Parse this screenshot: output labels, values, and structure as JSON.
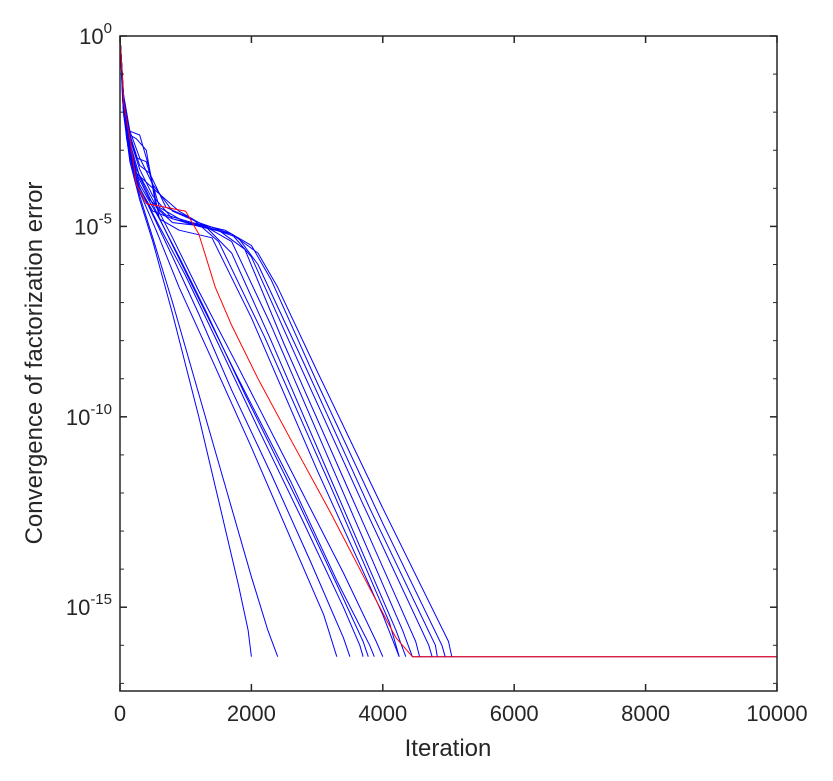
{
  "chart_data": {
    "type": "line",
    "title": "",
    "xlabel": "Iteration",
    "ylabel": "Convergence of factorization error",
    "xlim": [
      0,
      10000
    ],
    "ylim_log10": [
      -17.2,
      0
    ],
    "y_scale": "log",
    "grid": false,
    "legend": "none",
    "x_ticks": [
      {
        "value": 0,
        "label": "0"
      },
      {
        "value": 2000,
        "label": "2000"
      },
      {
        "value": 4000,
        "label": "4000"
      },
      {
        "value": 6000,
        "label": "6000"
      },
      {
        "value": 8000,
        "label": "8000"
      },
      {
        "value": 10000,
        "label": "10000"
      }
    ],
    "y_ticks": [
      {
        "log10": 0,
        "base": "10",
        "exp": "0"
      },
      {
        "log10": -5,
        "base": "10",
        "exp": "-5"
      },
      {
        "log10": -10,
        "base": "10",
        "exp": "-10"
      },
      {
        "log10": -15,
        "base": "10",
        "exp": "-15"
      }
    ],
    "colors": {
      "blue": "#0000ff",
      "red": "#ff0000",
      "axis": "#262626"
    },
    "series": [
      {
        "color": "#0000ff",
        "x_log10y": [
          [
            0,
            0
          ],
          [
            50,
            -1.6
          ],
          [
            100,
            -2.4
          ],
          [
            200,
            -3.5
          ],
          [
            300,
            -4.0
          ],
          [
            500,
            -4.6
          ],
          [
            800,
            -4.8
          ],
          [
            1200,
            -5.0
          ],
          [
            1700,
            -5.2
          ],
          [
            2100,
            -5.7
          ],
          [
            2400,
            -6.6
          ],
          [
            3000,
            -8.8
          ],
          [
            4000,
            -12.4
          ],
          [
            5000,
            -15.9
          ],
          [
            5050,
            -16.3
          ]
        ]
      },
      {
        "color": "#0000ff",
        "x_log10y": [
          [
            0,
            0
          ],
          [
            60,
            -1.8
          ],
          [
            120,
            -2.6
          ],
          [
            250,
            -3.6
          ],
          [
            450,
            -4.3
          ],
          [
            700,
            -4.7
          ],
          [
            1100,
            -4.9
          ],
          [
            1600,
            -5.1
          ],
          [
            2000,
            -5.5
          ],
          [
            2300,
            -6.4
          ],
          [
            3000,
            -9.1
          ],
          [
            4000,
            -12.8
          ],
          [
            4900,
            -16.0
          ],
          [
            4950,
            -16.3
          ]
        ]
      },
      {
        "color": "#0000ff",
        "x_log10y": [
          [
            0,
            0
          ],
          [
            70,
            -2.0
          ],
          [
            150,
            -2.6
          ],
          [
            250,
            -2.7
          ],
          [
            400,
            -3.0
          ],
          [
            550,
            -4.5
          ],
          [
            800,
            -4.9
          ],
          [
            1300,
            -5.0
          ],
          [
            1800,
            -5.3
          ],
          [
            2100,
            -6.0
          ],
          [
            2800,
            -8.6
          ],
          [
            3800,
            -12.4
          ],
          [
            4800,
            -16.0
          ],
          [
            4830,
            -16.3
          ]
        ]
      },
      {
        "color": "#0000ff",
        "x_log10y": [
          [
            0,
            0
          ],
          [
            50,
            -1.5
          ],
          [
            150,
            -2.5
          ],
          [
            300,
            -3.2
          ],
          [
            500,
            -3.9
          ],
          [
            800,
            -4.6
          ],
          [
            1200,
            -4.9
          ],
          [
            1700,
            -5.2
          ],
          [
            2000,
            -5.8
          ],
          [
            2700,
            -8.5
          ],
          [
            3700,
            -12.3
          ],
          [
            4700,
            -16.0
          ],
          [
            4750,
            -16.3
          ]
        ]
      },
      {
        "color": "#0000ff",
        "x_log10y": [
          [
            0,
            0
          ],
          [
            60,
            -1.7
          ],
          [
            120,
            -2.4
          ],
          [
            250,
            -3.2
          ],
          [
            400,
            -3.3
          ],
          [
            600,
            -4.5
          ],
          [
            1000,
            -4.9
          ],
          [
            1500,
            -5.1
          ],
          [
            1900,
            -5.6
          ],
          [
            2500,
            -8.1
          ],
          [
            3500,
            -12.0
          ],
          [
            4500,
            -15.9
          ],
          [
            4560,
            -16.3
          ]
        ]
      },
      {
        "color": "#0000ff",
        "x_log10y": [
          [
            0,
            0
          ],
          [
            50,
            -1.9
          ],
          [
            150,
            -2.7
          ],
          [
            300,
            -3.5
          ],
          [
            500,
            -4.2
          ],
          [
            800,
            -4.8
          ],
          [
            1300,
            -5.0
          ],
          [
            1700,
            -5.4
          ],
          [
            2300,
            -7.6
          ],
          [
            3300,
            -11.6
          ],
          [
            4300,
            -15.6
          ],
          [
            4450,
            -16.3
          ]
        ]
      },
      {
        "color": "#0000ff",
        "x_log10y": [
          [
            0,
            0
          ],
          [
            40,
            -1.5
          ],
          [
            100,
            -2.7
          ],
          [
            250,
            -3.6
          ],
          [
            500,
            -4.0
          ],
          [
            900,
            -4.6
          ],
          [
            1300,
            -5.0
          ],
          [
            1700,
            -5.7
          ],
          [
            2300,
            -8.0
          ],
          [
            3300,
            -12.0
          ],
          [
            4200,
            -15.6
          ],
          [
            4350,
            -16.3
          ]
        ]
      },
      {
        "color": "#0000ff",
        "x_log10y": [
          [
            0,
            0
          ],
          [
            50,
            -1.6
          ],
          [
            150,
            -2.6
          ],
          [
            300,
            -3.4
          ],
          [
            450,
            -3.6
          ],
          [
            700,
            -4.5
          ],
          [
            1100,
            -4.8
          ],
          [
            1500,
            -5.4
          ],
          [
            2200,
            -7.9
          ],
          [
            3200,
            -11.8
          ],
          [
            4100,
            -15.4
          ],
          [
            4250,
            -16.3
          ]
        ]
      },
      {
        "color": "#0000ff",
        "x_log10y": [
          [
            0,
            0
          ],
          [
            60,
            -1.8
          ],
          [
            150,
            -2.5
          ],
          [
            300,
            -2.6
          ],
          [
            450,
            -3.5
          ],
          [
            600,
            -4.8
          ],
          [
            900,
            -5.1
          ],
          [
            1400,
            -5.3
          ],
          [
            2000,
            -7.4
          ],
          [
            3000,
            -11.4
          ],
          [
            4000,
            -15.2
          ],
          [
            4250,
            -16.3
          ]
        ]
      },
      {
        "color": "#0000ff",
        "x_log10y": [
          [
            0,
            0
          ],
          [
            50,
            -1.6
          ],
          [
            120,
            -2.7
          ],
          [
            250,
            -3.5
          ],
          [
            500,
            -4.3
          ],
          [
            800,
            -5.3
          ],
          [
            1200,
            -6.7
          ],
          [
            1800,
            -8.7
          ],
          [
            2600,
            -11.4
          ],
          [
            3400,
            -14.1
          ],
          [
            3900,
            -15.9
          ],
          [
            4000,
            -16.3
          ]
        ]
      },
      {
        "color": "#0000ff",
        "x_log10y": [
          [
            0,
            0
          ],
          [
            50,
            -1.7
          ],
          [
            150,
            -2.8
          ],
          [
            300,
            -3.7
          ],
          [
            550,
            -4.6
          ],
          [
            800,
            -5.5
          ],
          [
            1200,
            -6.9
          ],
          [
            1800,
            -9.0
          ],
          [
            2600,
            -11.7
          ],
          [
            3300,
            -14.3
          ],
          [
            3800,
            -16.0
          ],
          [
            3870,
            -16.3
          ]
        ]
      },
      {
        "color": "#0000ff",
        "x_log10y": [
          [
            0,
            0
          ],
          [
            60,
            -1.9
          ],
          [
            150,
            -3.0
          ],
          [
            300,
            -3.9
          ],
          [
            600,
            -4.8
          ],
          [
            900,
            -5.8
          ],
          [
            1300,
            -7.2
          ],
          [
            1900,
            -9.4
          ],
          [
            2700,
            -12.2
          ],
          [
            3300,
            -14.4
          ],
          [
            3700,
            -15.9
          ],
          [
            3780,
            -16.3
          ]
        ]
      },
      {
        "color": "#0000ff",
        "x_log10y": [
          [
            0,
            0
          ],
          [
            50,
            -1.8
          ],
          [
            150,
            -3.1
          ],
          [
            300,
            -4.0
          ],
          [
            600,
            -5.0
          ],
          [
            1000,
            -6.3
          ],
          [
            1500,
            -8.1
          ],
          [
            2100,
            -10.3
          ],
          [
            2800,
            -12.8
          ],
          [
            3400,
            -15.0
          ],
          [
            3650,
            -16.0
          ],
          [
            3700,
            -16.3
          ]
        ]
      },
      {
        "color": "#0000ff",
        "x_log10y": [
          [
            0,
            0
          ],
          [
            40,
            -1.7
          ],
          [
            120,
            -2.9
          ],
          [
            250,
            -3.8
          ],
          [
            500,
            -4.7
          ],
          [
            800,
            -5.8
          ],
          [
            1200,
            -7.3
          ],
          [
            1700,
            -9.3
          ],
          [
            2300,
            -11.5
          ],
          [
            2900,
            -13.8
          ],
          [
            3400,
            -15.8
          ],
          [
            3500,
            -16.3
          ]
        ]
      },
      {
        "color": "#0000ff",
        "x_log10y": [
          [
            0,
            0
          ],
          [
            50,
            -1.9
          ],
          [
            150,
            -3.1
          ],
          [
            300,
            -4.1
          ],
          [
            550,
            -5.1
          ],
          [
            900,
            -6.6
          ],
          [
            1400,
            -8.5
          ],
          [
            2000,
            -10.8
          ],
          [
            2600,
            -13.2
          ],
          [
            3100,
            -15.2
          ],
          [
            3300,
            -16.3
          ]
        ]
      },
      {
        "color": "#0000ff",
        "x_log10y": [
          [
            0,
            0
          ],
          [
            60,
            -2.0
          ],
          [
            150,
            -3.2
          ],
          [
            300,
            -4.2
          ],
          [
            500,
            -5.3
          ],
          [
            800,
            -7.0
          ],
          [
            1200,
            -9.4
          ],
          [
            1600,
            -11.8
          ],
          [
            2000,
            -14.2
          ],
          [
            2250,
            -15.6
          ],
          [
            2400,
            -16.3
          ]
        ]
      },
      {
        "color": "#0000ff",
        "x_log10y": [
          [
            0,
            0
          ],
          [
            50,
            -2.0
          ],
          [
            150,
            -3.3
          ],
          [
            300,
            -4.3
          ],
          [
            500,
            -5.4
          ],
          [
            800,
            -7.3
          ],
          [
            1200,
            -10.0
          ],
          [
            1500,
            -12.2
          ],
          [
            1800,
            -14.4
          ],
          [
            1950,
            -15.6
          ],
          [
            2000,
            -16.3
          ]
        ]
      },
      {
        "color": "#0000ff",
        "x_log10y": [
          [
            4450,
            -16.3
          ],
          [
            10000,
            -16.3
          ]
        ]
      },
      {
        "color": "#ff0000",
        "x_log10y": [
          [
            0,
            0
          ],
          [
            60,
            -1.8
          ],
          [
            150,
            -2.7
          ],
          [
            250,
            -3.9
          ],
          [
            400,
            -4.4
          ],
          [
            700,
            -4.5
          ],
          [
            1000,
            -4.6
          ],
          [
            1200,
            -5.2
          ],
          [
            1450,
            -6.6
          ],
          [
            1700,
            -7.6
          ],
          [
            2100,
            -9.0
          ],
          [
            2600,
            -10.6
          ],
          [
            3200,
            -12.5
          ],
          [
            3800,
            -14.5
          ],
          [
            4200,
            -15.8
          ],
          [
            4450,
            -16.3
          ],
          [
            10000,
            -16.3
          ]
        ]
      }
    ]
  }
}
